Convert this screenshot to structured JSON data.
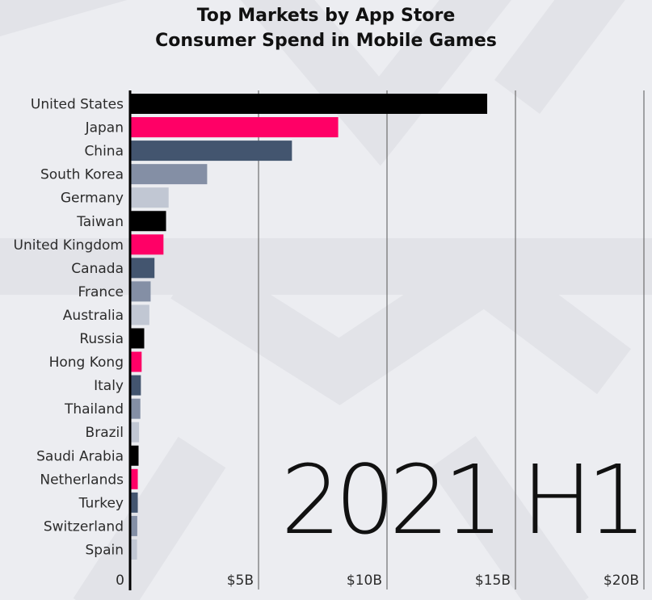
{
  "colors": {
    "background": "#ecedf1",
    "palette": [
      "#000000",
      "#ff0066",
      "#43556f",
      "#848fa5",
      "#c1c7d3"
    ]
  },
  "chart_data": {
    "type": "bar",
    "orientation": "horizontal",
    "title_lines": [
      "Top Markets by App Store",
      "Consumer Spend in Mobile Games"
    ],
    "period": "2021 H1",
    "categories": [
      "United States",
      "Japan",
      "China",
      "South Korea",
      "Germany",
      "Taiwan",
      "United Kingdom",
      "Canada",
      "France",
      "Australia",
      "Russia",
      "Hong Kong",
      "Italy",
      "Thailand",
      "Brazil",
      "Saudi Arabia",
      "Netherlands",
      "Turkey",
      "Switzerland",
      "Spain"
    ],
    "values": [
      13.9,
      8.1,
      6.3,
      3.0,
      1.5,
      1.4,
      1.3,
      0.95,
      0.8,
      0.75,
      0.55,
      0.45,
      0.42,
      0.4,
      0.35,
      0.33,
      0.3,
      0.3,
      0.28,
      0.27
    ],
    "unit": "USD billions",
    "xlim": [
      0,
      20
    ],
    "xticks": [
      {
        "value": 0,
        "label": "0"
      },
      {
        "value": 5,
        "label": "$5B"
      },
      {
        "value": 10,
        "label": "$10B"
      },
      {
        "value": 15,
        "label": "$15B"
      },
      {
        "value": 20,
        "label": "$20B"
      }
    ],
    "grid": true
  }
}
